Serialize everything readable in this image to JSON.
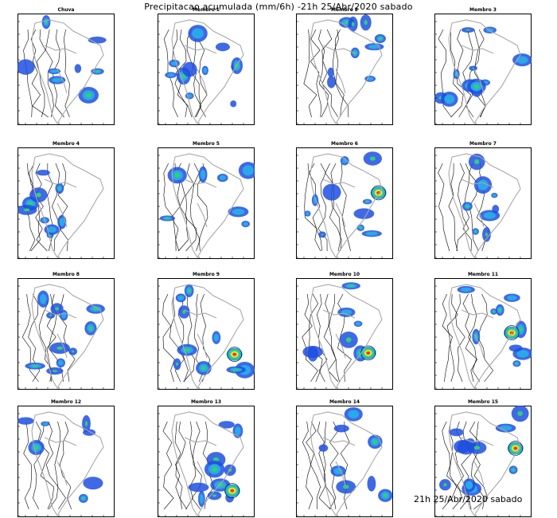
{
  "title": "Precipitacao acumulada (mm/6h) -21h 25/Abr/2020 sabado",
  "footer": "21h 25/Abr/2020 sabado",
  "panels": [
    {
      "label": "Chuva"
    },
    {
      "label": "Membro 1"
    },
    {
      "label": "Membro 2"
    },
    {
      "label": "Membro 3"
    },
    {
      "label": "Membro 4"
    },
    {
      "label": "Membro 5"
    },
    {
      "label": "Membro 6"
    },
    {
      "label": "Membro 7"
    },
    {
      "label": "Membro 8"
    },
    {
      "label": "Membro 9"
    },
    {
      "label": "Membro 10"
    },
    {
      "label": "Membro 11"
    },
    {
      "label": "Membro 12"
    },
    {
      "label": "Membro 13"
    },
    {
      "label": "Membro 14"
    },
    {
      "label": "Membro 15"
    }
  ],
  "colors": {
    "rain_light": "#1f4fe0",
    "rain_mid": "#2aa8e8",
    "rain_high": "#2fcf7a",
    "rain_heavy": "#e8e23a",
    "rain_extreme": "#e83a2a",
    "coast": "#a8a8a8",
    "isobar": "#000000"
  }
}
